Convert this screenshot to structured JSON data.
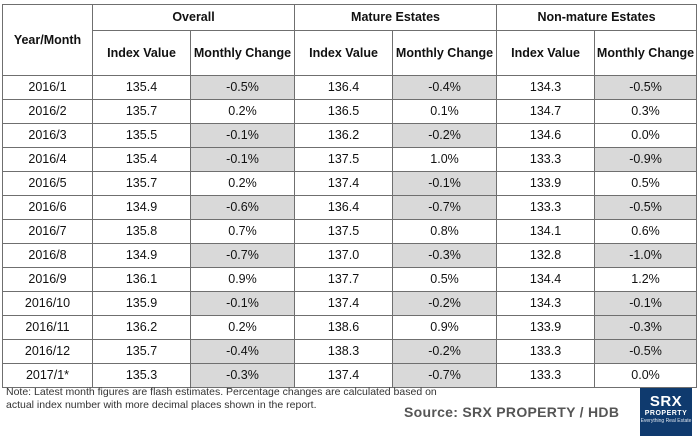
{
  "header": {
    "year_month": "Year/Month",
    "groups": [
      "Overall",
      "Mature Estates",
      "Non-mature Estates"
    ],
    "sub": {
      "index_value": "Index Value",
      "monthly_change": "Monthly Change"
    }
  },
  "rows": [
    {
      "period": "2016/1",
      "overall_index": "135.4",
      "overall_change": "-0.5%",
      "mature_index": "136.4",
      "mature_change": "-0.4%",
      "nonmature_index": "134.3",
      "nonmature_change": "-0.5%"
    },
    {
      "period": "2016/2",
      "overall_index": "135.7",
      "overall_change": "0.2%",
      "mature_index": "136.5",
      "mature_change": "0.1%",
      "nonmature_index": "134.7",
      "nonmature_change": "0.3%"
    },
    {
      "period": "2016/3",
      "overall_index": "135.5",
      "overall_change": "-0.1%",
      "mature_index": "136.2",
      "mature_change": "-0.2%",
      "nonmature_index": "134.6",
      "nonmature_change": "0.0%"
    },
    {
      "period": "2016/4",
      "overall_index": "135.4",
      "overall_change": "-0.1%",
      "mature_index": "137.5",
      "mature_change": "1.0%",
      "nonmature_index": "133.3",
      "nonmature_change": "-0.9%"
    },
    {
      "period": "2016/5",
      "overall_index": "135.7",
      "overall_change": "0.2%",
      "mature_index": "137.4",
      "mature_change": "-0.1%",
      "nonmature_index": "133.9",
      "nonmature_change": "0.5%"
    },
    {
      "period": "2016/6",
      "overall_index": "134.9",
      "overall_change": "-0.6%",
      "mature_index": "136.4",
      "mature_change": "-0.7%",
      "nonmature_index": "133.3",
      "nonmature_change": "-0.5%"
    },
    {
      "period": "2016/7",
      "overall_index": "135.8",
      "overall_change": "0.7%",
      "mature_index": "137.5",
      "mature_change": "0.8%",
      "nonmature_index": "134.1",
      "nonmature_change": "0.6%"
    },
    {
      "period": "2016/8",
      "overall_index": "134.9",
      "overall_change": "-0.7%",
      "mature_index": "137.0",
      "mature_change": "-0.3%",
      "nonmature_index": "132.8",
      "nonmature_change": "-1.0%"
    },
    {
      "period": "2016/9",
      "overall_index": "136.1",
      "overall_change": "0.9%",
      "mature_index": "137.7",
      "mature_change": "0.5%",
      "nonmature_index": "134.4",
      "nonmature_change": "1.2%"
    },
    {
      "period": "2016/10",
      "overall_index": "135.9",
      "overall_change": "-0.1%",
      "mature_index": "137.4",
      "mature_change": "-0.2%",
      "nonmature_index": "134.3",
      "nonmature_change": "-0.1%"
    },
    {
      "period": "2016/11",
      "overall_index": "136.2",
      "overall_change": "0.2%",
      "mature_index": "138.6",
      "mature_change": "0.9%",
      "nonmature_index": "133.9",
      "nonmature_change": "-0.3%"
    },
    {
      "period": "2016/12",
      "overall_index": "135.7",
      "overall_change": "-0.4%",
      "mature_index": "138.3",
      "mature_change": "-0.2%",
      "nonmature_index": "133.3",
      "nonmature_change": "-0.5%"
    },
    {
      "period": "2017/1*",
      "overall_index": "135.3",
      "overall_change": "-0.3%",
      "mature_index": "137.4",
      "mature_change": "-0.7%",
      "nonmature_index": "133.3",
      "nonmature_change": "0.0%"
    }
  ],
  "footer": {
    "note": "Note: Latest month figures are flash estimates. Percentage changes are calculated based on actual index number with more decimal places shown in the report.",
    "source": "Source:  SRX PROPERTY / HDB"
  },
  "logo": {
    "line1": "SRX",
    "line2": "PROPERTY",
    "line3": "Everything Real Estate"
  },
  "colors": {
    "negative_cell_bg": "#d9d9d9",
    "grid_border": "#6f6f6f",
    "logo_bg": "#0f3a6e"
  }
}
